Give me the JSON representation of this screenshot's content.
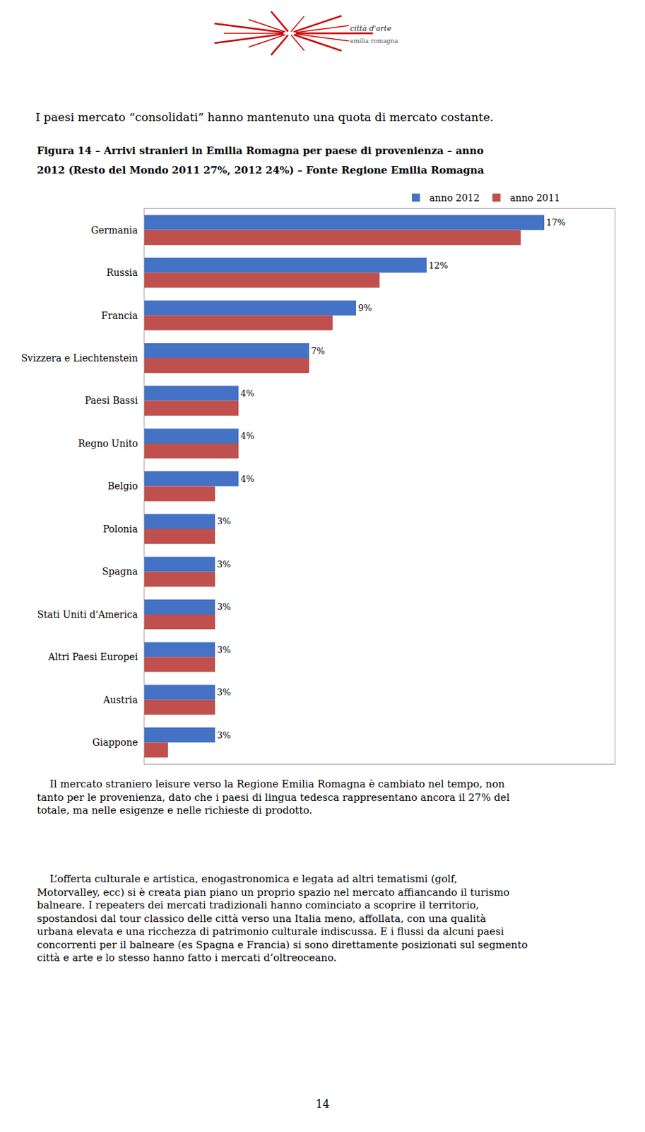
{
  "chart_data": {
    "type": "bar",
    "orientation": "horizontal",
    "title": "I paesi mercato “consolidati” hanno mantenuto una quota di mercato costante.",
    "subtitle": [
      "Figura 14 – Arrivi stranieri in Emilia Romagna per paese di provenienza – anno",
      "2012 (Resto del Mondo 2011 27%, 2012 24%) – Fonte Regione Emilia Romagna"
    ],
    "annotations": [
      "città d'arte",
      "emilia romagna",
      "    Il mercato straniero leisure verso la Regione Emilia Romagna è cambiato nel tempo, non tanto per le provenienza, dato che i paesi di lingua tedesca rappresentano ancora il 27% del totale, ma nelle esigenze e nelle richieste di prodotto.",
      "    L’offerta culturale e artistica, enogastronomica e legata ad altri tematismi (golf, Motorvalley, ecc) si è creata pian piano un proprio spazio nel mercato affiancando il turismo balneare. I repeaters dei mercati tradizionali hanno cominciato a scoprire il territorio, spostandosi dal tour classico delle città verso una Italia meno, affollata, con una qualità urbana elevata e una ricchezza di patrimonio culturale indiscussa. E i flussi da alcuni paesi concorrenti per il balneare (es Spagna e Francia) si sono direttamente posizionati sul segmento città e arte e lo stesso hanno fatto i mercati d’oltreoceano.",
      "14"
    ],
    "categories": [
      "Germania",
      "Russia",
      "Francia",
      "Svizzera e Liechtenstein",
      "Paesi Bassi",
      "Regno Unito",
      "Belgio",
      "Polonia",
      "Spagna",
      "Stati Uniti d'America",
      "Altri Paesi Europei",
      "Austria",
      "Giappone"
    ],
    "series": [
      {
        "name": "anno 2012",
        "color": "#4472C4",
        "values": [
          17,
          12,
          9,
          7,
          4,
          4,
          4,
          3,
          3,
          3,
          3,
          3,
          3
        ],
        "value_labels": [
          "17%",
          "12%",
          "9%",
          "7%",
          "4%",
          "4%",
          "4%",
          "3%",
          "3%",
          "3%",
          "3%",
          "3%",
          "3%"
        ]
      },
      {
        "name": "anno 2011",
        "color": "#C0504D",
        "values": [
          16,
          10,
          8,
          7,
          4,
          4,
          3,
          3,
          3,
          3,
          3,
          3,
          1
        ]
      }
    ],
    "xlim": [
      0,
      20
    ],
    "xticks": [],
    "tick_labels": "y",
    "grid": false,
    "legend": "top",
    "data_labels": true
  }
}
